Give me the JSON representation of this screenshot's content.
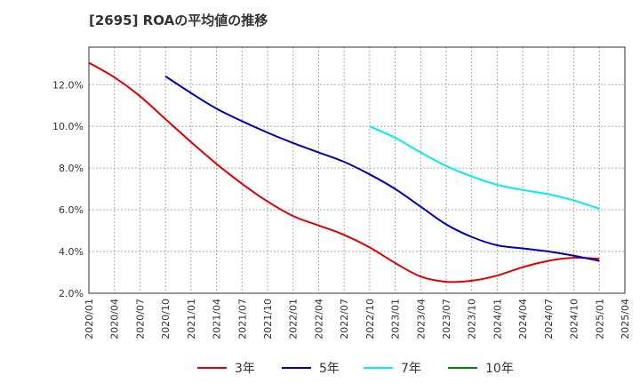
{
  "chart_data": {
    "type": "line",
    "title": "[2695]  ROAの平均値の推移",
    "xlabel": "",
    "ylabel": "",
    "x": [
      "2020/01",
      "2020/04",
      "2020/07",
      "2020/10",
      "2021/01",
      "2021/04",
      "2021/07",
      "2021/10",
      "2022/01",
      "2022/04",
      "2022/07",
      "2022/10",
      "2023/01",
      "2023/04",
      "2023/07",
      "2023/10",
      "2024/01",
      "2024/04",
      "2024/07",
      "2024/10",
      "2025/01",
      "2025/04"
    ],
    "ylim": [
      2.0,
      13.8
    ],
    "yticks": [
      "2.0%",
      "4.0%",
      "6.0%",
      "8.0%",
      "10.0%",
      "12.0%"
    ],
    "grid": true,
    "legend_position": "bottom",
    "series": [
      {
        "name": "3年",
        "color": "#dd0000",
        "values": [
          13.05,
          12.35,
          11.45,
          10.35,
          9.25,
          8.2,
          7.25,
          6.4,
          5.7,
          5.25,
          4.8,
          4.2,
          3.45,
          2.8,
          2.55,
          2.6,
          2.85,
          3.25,
          3.55,
          3.7,
          3.65,
          null
        ]
      },
      {
        "name": "5年",
        "color": "#0000bb",
        "values": [
          null,
          null,
          null,
          12.4,
          11.6,
          10.85,
          10.25,
          9.7,
          9.2,
          8.75,
          8.3,
          7.7,
          7.0,
          6.15,
          5.3,
          4.7,
          4.3,
          4.15,
          4.0,
          3.8,
          3.55,
          null
        ]
      },
      {
        "name": "7年",
        "color": "#00eeee",
        "values": [
          null,
          null,
          null,
          null,
          null,
          null,
          null,
          null,
          null,
          null,
          null,
          10.0,
          9.45,
          8.75,
          8.1,
          7.6,
          7.2,
          6.95,
          6.75,
          6.45,
          6.05,
          null
        ]
      },
      {
        "name": "10年",
        "color": "#008800",
        "values": [
          null,
          null,
          null,
          null,
          null,
          null,
          null,
          null,
          null,
          null,
          null,
          null,
          null,
          null,
          null,
          null,
          null,
          null,
          null,
          null,
          null,
          null
        ]
      }
    ]
  }
}
